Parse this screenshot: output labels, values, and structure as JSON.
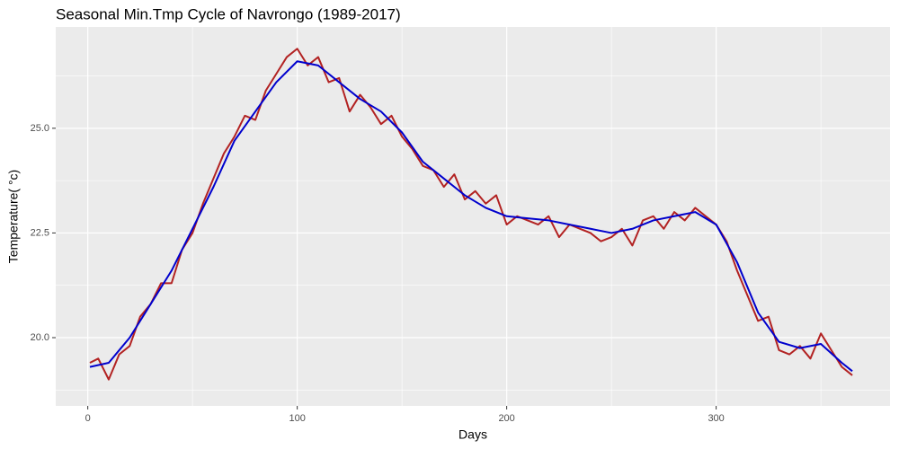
{
  "chart_data": {
    "type": "line",
    "title": "Seasonal Min.Tmp Cycle of Navrongo (1989-2017)",
    "x_label": "Days",
    "y_label": "Temperature( °c)",
    "xlim": [
      -15.3,
      383
    ],
    "ylim": [
      18.37,
      27.42
    ],
    "xticks": [
      0,
      100,
      200,
      300
    ],
    "yticks": [
      {
        "value": 20,
        "label": "20.0"
      },
      {
        "value": 22.5,
        "label": "22.5"
      },
      {
        "value": 25,
        "label": "25.0"
      }
    ],
    "minor_xticks": [
      50,
      150,
      250,
      350
    ],
    "minor_yticks": [
      18.75,
      21.25,
      23.75,
      26.25
    ],
    "grid": true,
    "series": [
      {
        "color": "#b22222",
        "x": [
          1,
          5,
          10,
          15,
          20,
          25,
          30,
          35,
          40,
          45,
          50,
          55,
          60,
          65,
          70,
          75,
          80,
          85,
          90,
          95,
          100,
          105,
          110,
          115,
          120,
          125,
          130,
          135,
          140,
          145,
          150,
          155,
          160,
          165,
          170,
          175,
          180,
          185,
          190,
          195,
          200,
          205,
          210,
          215,
          220,
          225,
          230,
          235,
          240,
          245,
          250,
          255,
          260,
          265,
          270,
          275,
          280,
          285,
          290,
          295,
          300,
          305,
          310,
          315,
          320,
          325,
          330,
          335,
          340,
          345,
          350,
          355,
          360,
          365
        ],
        "values": [
          19.4,
          19.5,
          19.0,
          19.6,
          19.8,
          20.5,
          20.8,
          21.3,
          21.3,
          22.1,
          22.5,
          23.2,
          23.8,
          24.4,
          24.8,
          25.3,
          25.2,
          25.9,
          26.3,
          26.7,
          26.9,
          26.5,
          26.7,
          26.1,
          26.2,
          25.4,
          25.8,
          25.5,
          25.1,
          25.3,
          24.8,
          24.5,
          24.1,
          24.0,
          23.6,
          23.9,
          23.3,
          23.5,
          23.2,
          23.4,
          22.7,
          22.9,
          22.8,
          22.7,
          22.9,
          22.4,
          22.7,
          22.6,
          22.5,
          22.3,
          22.4,
          22.6,
          22.2,
          22.8,
          22.9,
          22.6,
          23.0,
          22.8,
          23.1,
          22.9,
          22.7,
          22.3,
          21.6,
          21.0,
          20.4,
          20.5,
          19.7,
          19.6,
          19.8,
          19.5,
          20.1,
          19.7,
          19.3,
          19.1
        ]
      },
      {
        "color": "#0000cd",
        "x": [
          1,
          10,
          20,
          30,
          40,
          50,
          60,
          70,
          80,
          90,
          100,
          110,
          120,
          130,
          140,
          150,
          160,
          170,
          180,
          190,
          200,
          210,
          220,
          230,
          240,
          250,
          260,
          270,
          280,
          290,
          300,
          310,
          320,
          330,
          340,
          350,
          360,
          365
        ],
        "values": [
          19.3,
          19.4,
          20.0,
          20.8,
          21.6,
          22.6,
          23.6,
          24.7,
          25.4,
          26.1,
          26.6,
          26.5,
          26.1,
          25.7,
          25.4,
          24.9,
          24.2,
          23.8,
          23.4,
          23.1,
          22.9,
          22.85,
          22.8,
          22.7,
          22.6,
          22.5,
          22.6,
          22.8,
          22.9,
          23.0,
          22.7,
          21.8,
          20.6,
          19.9,
          19.75,
          19.85,
          19.4,
          19.2
        ]
      }
    ]
  }
}
